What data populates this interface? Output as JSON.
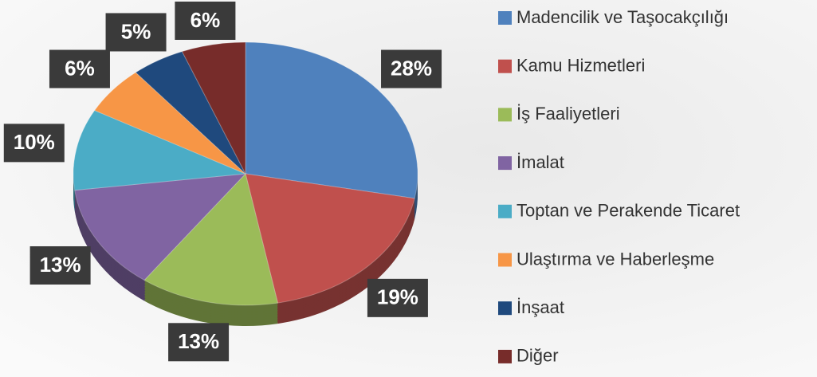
{
  "chart_data": {
    "type": "pie",
    "categories": [
      "Madencilik ve Taşocakçılığı",
      "Kamu Hizmetleri",
      "İş Faaliyetleri",
      "İmalat",
      "Toptan ve Perakende Ticaret",
      "Ulaştırma ve Haberleşme",
      "İnşaat",
      "Diğer"
    ],
    "values": [
      28,
      19,
      13,
      13,
      10,
      6,
      5,
      6
    ],
    "value_labels": [
      "28%",
      "19%",
      "13%",
      "13%",
      "10%",
      "6%",
      "5%",
      "6%"
    ],
    "colors": [
      "#4f81bd",
      "#c0504d",
      "#9bbb59",
      "#8064a2",
      "#4bacc6",
      "#f79646",
      "#1f497d",
      "#772c2a"
    ],
    "legend": "right"
  }
}
